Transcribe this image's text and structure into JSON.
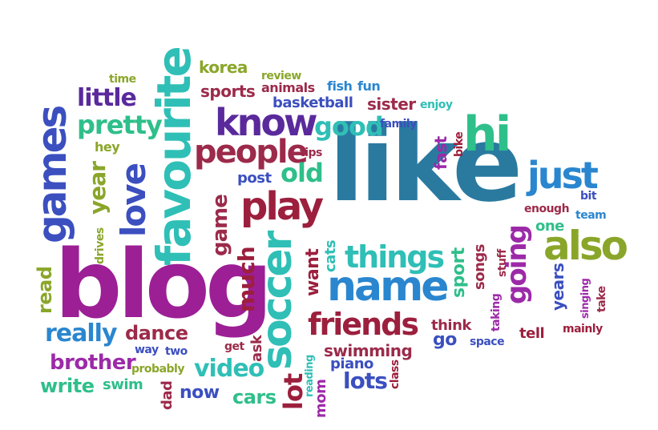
{
  "words": {
    "like": {
      "text": "like",
      "color": "#2a7aa0"
    },
    "blog": {
      "text": "blog",
      "color": "#9c1f95"
    },
    "favourite": {
      "text": "favourite",
      "color": "#2fbfb6"
    },
    "games": {
      "text": "games",
      "color": "#3b4fbf"
    },
    "soccer": {
      "text": "soccer",
      "color": "#2fbfb6"
    },
    "name": {
      "text": "name",
      "color": "#2a86cf"
    },
    "play": {
      "text": "play",
      "color": "#9c1f3d"
    },
    "know": {
      "text": "know",
      "color": "#5a2a9c"
    },
    "hi": {
      "text": "hi",
      "color": "#2fbf8a"
    },
    "also": {
      "text": "also",
      "color": "#8aa62a"
    },
    "just": {
      "text": "just",
      "color": "#2a86cf"
    },
    "love": {
      "text": "love",
      "color": "#3b4fbf"
    },
    "people": {
      "text": "people",
      "color": "#9c2a4a"
    },
    "things": {
      "text": "things",
      "color": "#2fbfb6"
    },
    "friends": {
      "text": "friends",
      "color": "#9c1f3d"
    },
    "really": {
      "text": "really",
      "color": "#2a86cf"
    },
    "going": {
      "text": "going",
      "color": "#9c2aa8"
    },
    "pretty": {
      "text": "pretty",
      "color": "#2fbf8a"
    },
    "little": {
      "text": "little",
      "color": "#5a2a9c"
    },
    "year": {
      "text": "year",
      "color": "#8aa62a"
    },
    "old": {
      "text": "old",
      "color": "#2fbf8a"
    },
    "good": {
      "text": "good",
      "color": "#2fbfb6"
    },
    "video": {
      "text": "video",
      "color": "#2fbfb6"
    },
    "lots": {
      "text": "lots",
      "color": "#3b4fbf"
    },
    "lot": {
      "text": "lot",
      "color": "#9c1f3d"
    },
    "much": {
      "text": "much",
      "color": "#9c1f3d"
    },
    "game": {
      "text": "game",
      "color": "#9c2a4a"
    },
    "brother": {
      "text": "brother",
      "color": "#9c2aa8"
    },
    "write": {
      "text": "write",
      "color": "#2fbf8a"
    },
    "dance": {
      "text": "dance",
      "color": "#9c2a4a"
    },
    "swimming": {
      "text": "swimming",
      "color": "#9c2a4a"
    },
    "piano": {
      "text": "piano",
      "color": "#3b4fbf"
    },
    "cars": {
      "text": "cars",
      "color": "#2fbf8a"
    },
    "now": {
      "text": "now",
      "color": "#3b4fbf"
    },
    "swim": {
      "text": "swim",
      "color": "#2fbf8a"
    },
    "probably": {
      "text": "probably",
      "color": "#8aa62a"
    },
    "dad": {
      "text": "dad",
      "color": "#9c2a4a"
    },
    "mom": {
      "text": "mom",
      "color": "#9c2aa8"
    },
    "reading": {
      "text": "reading",
      "color": "#2fbfb6"
    },
    "class": {
      "text": "class",
      "color": "#9c1f3d"
    },
    "ask": {
      "text": "ask",
      "color": "#9c2a4a"
    },
    "get": {
      "text": "get",
      "color": "#9c2a4a"
    },
    "way": {
      "text": "way",
      "color": "#3b4fbf"
    },
    "two": {
      "text": "two",
      "color": "#3b4fbf"
    },
    "read": {
      "text": "read",
      "color": "#8aa62a"
    },
    "drives": {
      "text": "drives",
      "color": "#8aa62a"
    },
    "hey": {
      "text": "hey",
      "color": "#8aa62a"
    },
    "time": {
      "text": "time",
      "color": "#8aa62a"
    },
    "korea": {
      "text": "korea",
      "color": "#8aa62a"
    },
    "sports": {
      "text": "sports",
      "color": "#9c2a4a"
    },
    "review": {
      "text": "review",
      "color": "#8aa62a"
    },
    "animals": {
      "text": "animals",
      "color": "#9c2a4a"
    },
    "fish": {
      "text": "fish",
      "color": "#2a86cf"
    },
    "fun": {
      "text": "fun",
      "color": "#2a86cf"
    },
    "basketball": {
      "text": "basketball",
      "color": "#3b4fbf"
    },
    "sister": {
      "text": "sister",
      "color": "#9c2a4a"
    },
    "enjoy": {
      "text": "enjoy",
      "color": "#2fbfb6"
    },
    "family": {
      "text": "family",
      "color": "#3b4fbf"
    },
    "tips": {
      "text": "tips",
      "color": "#9c2a4a"
    },
    "post": {
      "text": "post",
      "color": "#3b4fbf"
    },
    "fast": {
      "text": "fast",
      "color": "#9c2aa8"
    },
    "bike": {
      "text": "bike",
      "color": "#9c1f3d"
    },
    "bit": {
      "text": "bit",
      "color": "#3b4fbf"
    },
    "enough": {
      "text": "enough",
      "color": "#9c2a4a"
    },
    "team": {
      "text": "team",
      "color": "#2a86cf"
    },
    "one": {
      "text": "one",
      "color": "#2fbf8a"
    },
    "want": {
      "text": "want",
      "color": "#9c1f3d"
    },
    "cats": {
      "text": "cats",
      "color": "#2fbfb6"
    },
    "sport": {
      "text": "sport",
      "color": "#2fbf8a"
    },
    "songs": {
      "text": "songs",
      "color": "#9c2a4a"
    },
    "stuff": {
      "text": "stuff",
      "color": "#9c2a4a"
    },
    "taking": {
      "text": "taking",
      "color": "#9c2aa8"
    },
    "years": {
      "text": "years",
      "color": "#3b4fbf"
    },
    "singing": {
      "text": "singing",
      "color": "#9c2aa8"
    },
    "take": {
      "text": "take",
      "color": "#9c2a4a"
    },
    "think": {
      "text": "think",
      "color": "#9c2a4a"
    },
    "go": {
      "text": "go",
      "color": "#3b4fbf"
    },
    "space": {
      "text": "space",
      "color": "#3b4fbf"
    },
    "tell": {
      "text": "tell",
      "color": "#9c1f3d"
    },
    "mainly": {
      "text": "mainly",
      "color": "#9c1f3d"
    }
  }
}
